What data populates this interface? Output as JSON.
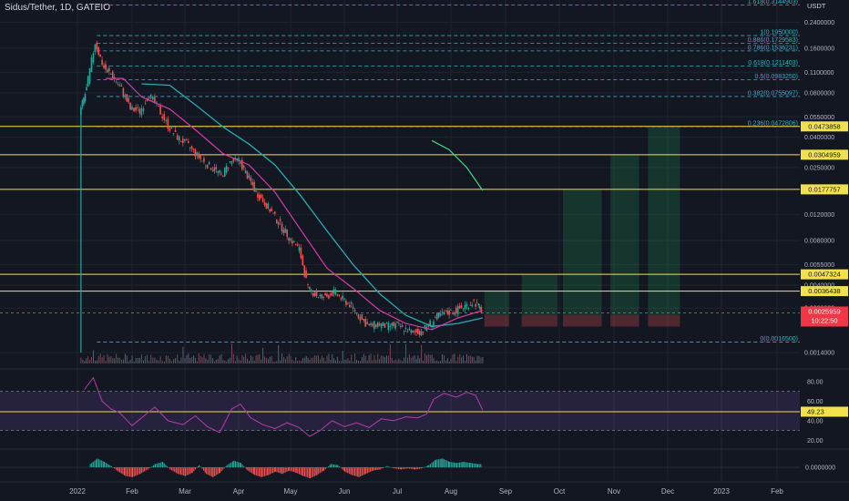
{
  "header": {
    "symbol_title": "Sidus/Tether, 1D, GATEIO",
    "currency": "USDT"
  },
  "colors": {
    "background": "#131722",
    "grid": "#1f2330",
    "fib": "#2fb3c4",
    "horizontal": "#f2e14d",
    "ma_fast": "#d63aa6",
    "ma_slow": "#2aaab0",
    "ma_extra": "#3ddc84",
    "candle_up": "#26a69a",
    "candle_down": "#ef5350",
    "rsi": "#b03fa7",
    "price_badge": "#f23645",
    "badge_text": "#131722"
  },
  "chart_data": [
    {
      "type": "line",
      "name": "price",
      "scale": "log",
      "ylim": [
        0.0011,
        0.33
      ],
      "x_axis": [
        "2022",
        "Feb",
        "Mar",
        "Apr",
        "May",
        "Jun",
        "Jul",
        "Aug",
        "Sep",
        "Oct",
        "Nov",
        "Dec",
        "2023",
        "Feb"
      ],
      "y_ticks": [
        "0.2400000",
        "0.1600000",
        "0.1100000",
        "0.0800000",
        "0.0550000",
        "0.0400000",
        "0.0250000",
        "0.0120000",
        "0.0080000",
        "0.0055000",
        "0.0040000",
        "0.0028000",
        "0.0014000"
      ],
      "fib_levels": [
        {
          "label": "1.618(0.3144903)",
          "value": 0.3144903
        },
        {
          "label": "1(0.1950000)",
          "value": 0.195
        },
        {
          "label": "0.886(0.1729583)",
          "value": 0.1729583
        },
        {
          "label": "0.786(0.1536231)",
          "value": 0.1536231
        },
        {
          "label": "0.618(0.1211403)",
          "value": 0.1211403
        },
        {
          "label": "0.5(0.0983250)",
          "value": 0.098325
        },
        {
          "label": "0.382(0.0755097)",
          "value": 0.0755097
        },
        {
          "label": "0.236(0.0472806)",
          "value": 0.0472806
        },
        {
          "label": "0(0.0016500)",
          "value": 0.00165
        }
      ],
      "horizontal_levels": [
        {
          "label": "0.0473858",
          "value": 0.0473858
        },
        {
          "label": "0.0304959",
          "value": 0.0304959
        },
        {
          "label": "0.0177757",
          "value": 0.0177757
        },
        {
          "label": "0.0047324",
          "value": 0.0047324
        },
        {
          "label": "0.0036438",
          "value": 0.0036438
        }
      ],
      "last_price": {
        "label": "0.0025959",
        "countdown": "10:22:50",
        "value": 0.0025959
      },
      "series_close": [
        {
          "date": "2022-01-03",
          "value": 0.058
        },
        {
          "date": "2022-01-07",
          "value": 0.085
        },
        {
          "date": "2022-01-12",
          "value": 0.175
        },
        {
          "date": "2022-01-17",
          "value": 0.118
        },
        {
          "date": "2022-01-22",
          "value": 0.104
        },
        {
          "date": "2022-01-27",
          "value": 0.085
        },
        {
          "date": "2022-02-01",
          "value": 0.062
        },
        {
          "date": "2022-02-06",
          "value": 0.06
        },
        {
          "date": "2022-02-11",
          "value": 0.078
        },
        {
          "date": "2022-02-16",
          "value": 0.062
        },
        {
          "date": "2022-02-21",
          "value": 0.048
        },
        {
          "date": "2022-02-26",
          "value": 0.04
        },
        {
          "date": "2022-03-03",
          "value": 0.036
        },
        {
          "date": "2022-03-08",
          "value": 0.031
        },
        {
          "date": "2022-03-13",
          "value": 0.027
        },
        {
          "date": "2022-03-18",
          "value": 0.025
        },
        {
          "date": "2022-03-23",
          "value": 0.022
        },
        {
          "date": "2022-03-28",
          "value": 0.027
        },
        {
          "date": "2022-04-02",
          "value": 0.028
        },
        {
          "date": "2022-04-07",
          "value": 0.022
        },
        {
          "date": "2022-04-12",
          "value": 0.017
        },
        {
          "date": "2022-04-17",
          "value": 0.0145
        },
        {
          "date": "2022-04-22",
          "value": 0.012
        },
        {
          "date": "2022-04-27",
          "value": 0.0098
        },
        {
          "date": "2022-05-02",
          "value": 0.0082
        },
        {
          "date": "2022-05-07",
          "value": 0.007
        },
        {
          "date": "2022-05-12",
          "value": 0.0038
        },
        {
          "date": "2022-05-17",
          "value": 0.0034
        },
        {
          "date": "2022-05-22",
          "value": 0.0033
        },
        {
          "date": "2022-05-27",
          "value": 0.0036
        },
        {
          "date": "2022-06-01",
          "value": 0.0032
        },
        {
          "date": "2022-06-06",
          "value": 0.0029
        },
        {
          "date": "2022-06-11",
          "value": 0.0024
        },
        {
          "date": "2022-06-16",
          "value": 0.0021
        },
        {
          "date": "2022-06-21",
          "value": 0.0022
        },
        {
          "date": "2022-06-26",
          "value": 0.0021
        },
        {
          "date": "2022-07-01",
          "value": 0.00215
        },
        {
          "date": "2022-07-06",
          "value": 0.00205
        },
        {
          "date": "2022-07-11",
          "value": 0.0019
        },
        {
          "date": "2022-07-16",
          "value": 0.00195
        },
        {
          "date": "2022-07-21",
          "value": 0.0022
        },
        {
          "date": "2022-07-26",
          "value": 0.0025
        },
        {
          "date": "2022-07-31",
          "value": 0.0026
        },
        {
          "date": "2022-08-05",
          "value": 0.0027
        },
        {
          "date": "2022-08-10",
          "value": 0.0029
        },
        {
          "date": "2022-08-15",
          "value": 0.0031
        },
        {
          "date": "2022-08-19",
          "value": 0.0027
        }
      ],
      "ma_fast": [
        {
          "date": "2022-01-17",
          "value": 0.1
        },
        {
          "date": "2022-01-27",
          "value": 0.1
        },
        {
          "date": "2022-02-06",
          "value": 0.075
        },
        {
          "date": "2022-02-21",
          "value": 0.062
        },
        {
          "date": "2022-03-08",
          "value": 0.044
        },
        {
          "date": "2022-03-23",
          "value": 0.031
        },
        {
          "date": "2022-04-07",
          "value": 0.026
        },
        {
          "date": "2022-04-22",
          "value": 0.017
        },
        {
          "date": "2022-05-07",
          "value": 0.0094
        },
        {
          "date": "2022-05-22",
          "value": 0.0052
        },
        {
          "date": "2022-06-06",
          "value": 0.0038
        },
        {
          "date": "2022-06-21",
          "value": 0.0027
        },
        {
          "date": "2022-07-06",
          "value": 0.0022
        },
        {
          "date": "2022-07-21",
          "value": 0.002
        },
        {
          "date": "2022-08-05",
          "value": 0.0024
        },
        {
          "date": "2022-08-19",
          "value": 0.0027
        }
      ],
      "ma_slow": [
        {
          "date": "2022-02-06",
          "value": 0.092
        },
        {
          "date": "2022-02-21",
          "value": 0.09
        },
        {
          "date": "2022-03-08",
          "value": 0.065
        },
        {
          "date": "2022-03-23",
          "value": 0.047
        },
        {
          "date": "2022-04-07",
          "value": 0.036
        },
        {
          "date": "2022-04-22",
          "value": 0.026
        },
        {
          "date": "2022-05-07",
          "value": 0.016
        },
        {
          "date": "2022-05-22",
          "value": 0.0093
        },
        {
          "date": "2022-06-06",
          "value": 0.0055
        },
        {
          "date": "2022-06-21",
          "value": 0.0035
        },
        {
          "date": "2022-07-06",
          "value": 0.0025
        },
        {
          "date": "2022-07-21",
          "value": 0.0021
        },
        {
          "date": "2022-08-05",
          "value": 0.0022
        },
        {
          "date": "2022-08-19",
          "value": 0.0024
        }
      ],
      "ma_extra": [
        {
          "date": "2022-07-21",
          "value": 0.038
        },
        {
          "date": "2022-07-31",
          "value": 0.033
        },
        {
          "date": "2022-08-10",
          "value": 0.025
        },
        {
          "date": "2022-08-19",
          "value": 0.0175
        }
      ],
      "projection_boxes": [
        {
          "start": "2022-08-20",
          "end": "2022-09-03",
          "entry": 0.0025,
          "stop": 0.0021,
          "target": 0.0036438
        },
        {
          "start": "2022-09-10",
          "end": "2022-09-30",
          "entry": 0.0025,
          "stop": 0.0021,
          "target": 0.0047324
        },
        {
          "start": "2022-10-03",
          "end": "2022-10-25",
          "entry": 0.0025,
          "stop": 0.0021,
          "target": 0.0177757
        },
        {
          "start": "2022-10-30",
          "end": "2022-11-15",
          "entry": 0.0025,
          "stop": 0.0021,
          "target": 0.0304959
        },
        {
          "start": "2022-11-20",
          "end": "2022-12-08",
          "entry": 0.0025,
          "stop": 0.0021,
          "target": 0.0473858
        }
      ]
    },
    {
      "type": "line",
      "name": "RSI",
      "ylim": [
        12,
        92
      ],
      "y_ticks": [
        "80.00",
        "60.00",
        "40.00",
        "20.00"
      ],
      "bands": [
        30,
        70
      ],
      "level_line": 49.23,
      "current_label": "49.23",
      "series": [
        {
          "date": "2022-01-05",
          "value": 72
        },
        {
          "date": "2022-01-10",
          "value": 84
        },
        {
          "date": "2022-01-15",
          "value": 60
        },
        {
          "date": "2022-01-20",
          "value": 52
        },
        {
          "date": "2022-01-25",
          "value": 48
        },
        {
          "date": "2022-02-01",
          "value": 35
        },
        {
          "date": "2022-02-08",
          "value": 46
        },
        {
          "date": "2022-02-13",
          "value": 54
        },
        {
          "date": "2022-02-20",
          "value": 40
        },
        {
          "date": "2022-02-28",
          "value": 36
        },
        {
          "date": "2022-03-07",
          "value": 45
        },
        {
          "date": "2022-03-14",
          "value": 34
        },
        {
          "date": "2022-03-21",
          "value": 28
        },
        {
          "date": "2022-03-28",
          "value": 52
        },
        {
          "date": "2022-04-02",
          "value": 57
        },
        {
          "date": "2022-04-08",
          "value": 43
        },
        {
          "date": "2022-04-15",
          "value": 36
        },
        {
          "date": "2022-04-22",
          "value": 32
        },
        {
          "date": "2022-04-29",
          "value": 38
        },
        {
          "date": "2022-05-06",
          "value": 33
        },
        {
          "date": "2022-05-12",
          "value": 24
        },
        {
          "date": "2022-05-18",
          "value": 30
        },
        {
          "date": "2022-05-25",
          "value": 40
        },
        {
          "date": "2022-06-01",
          "value": 34
        },
        {
          "date": "2022-06-08",
          "value": 38
        },
        {
          "date": "2022-06-15",
          "value": 33
        },
        {
          "date": "2022-06-22",
          "value": 42
        },
        {
          "date": "2022-06-29",
          "value": 40
        },
        {
          "date": "2022-07-06",
          "value": 44
        },
        {
          "date": "2022-07-13",
          "value": 43
        },
        {
          "date": "2022-07-18",
          "value": 47
        },
        {
          "date": "2022-07-22",
          "value": 62
        },
        {
          "date": "2022-07-28",
          "value": 68
        },
        {
          "date": "2022-08-04",
          "value": 64
        },
        {
          "date": "2022-08-10",
          "value": 69
        },
        {
          "date": "2022-08-15",
          "value": 66
        },
        {
          "date": "2022-08-19",
          "value": 51
        }
      ]
    },
    {
      "type": "bar",
      "name": "histogram",
      "y_ticks": [
        "0.0000000"
      ],
      "ylim": [
        -1,
        1
      ],
      "series": [
        {
          "date": "2022-01-08",
          "value": 0.3
        },
        {
          "date": "2022-01-12",
          "value": 0.8
        },
        {
          "date": "2022-01-16",
          "value": 0.5
        },
        {
          "date": "2022-01-20",
          "value": 0.1
        },
        {
          "date": "2022-01-24",
          "value": -0.4
        },
        {
          "date": "2022-01-28",
          "value": -0.8
        },
        {
          "date": "2022-02-01",
          "value": -0.9
        },
        {
          "date": "2022-02-05",
          "value": -0.6
        },
        {
          "date": "2022-02-09",
          "value": -0.2
        },
        {
          "date": "2022-02-13",
          "value": 0.3
        },
        {
          "date": "2022-02-17",
          "value": 0.5
        },
        {
          "date": "2022-02-21",
          "value": -0.2
        },
        {
          "date": "2022-02-25",
          "value": -0.6
        },
        {
          "date": "2022-03-01",
          "value": -0.8
        },
        {
          "date": "2022-03-05",
          "value": -0.5
        },
        {
          "date": "2022-03-09",
          "value": 0.2
        },
        {
          "date": "2022-03-13",
          "value": -0.6
        },
        {
          "date": "2022-03-17",
          "value": -0.9
        },
        {
          "date": "2022-03-21",
          "value": -0.5
        },
        {
          "date": "2022-03-25",
          "value": 0.2
        },
        {
          "date": "2022-03-29",
          "value": 0.6
        },
        {
          "date": "2022-04-02",
          "value": 0.4
        },
        {
          "date": "2022-04-06",
          "value": -0.3
        },
        {
          "date": "2022-04-10",
          "value": -0.7
        },
        {
          "date": "2022-04-14",
          "value": -0.9
        },
        {
          "date": "2022-04-18",
          "value": -0.7
        },
        {
          "date": "2022-04-22",
          "value": -0.4
        },
        {
          "date": "2022-04-26",
          "value": -0.6
        },
        {
          "date": "2022-04-30",
          "value": -0.3
        },
        {
          "date": "2022-05-04",
          "value": -0.5
        },
        {
          "date": "2022-05-08",
          "value": -0.8
        },
        {
          "date": "2022-05-12",
          "value": -1.0
        },
        {
          "date": "2022-05-16",
          "value": -0.7
        },
        {
          "date": "2022-05-20",
          "value": -0.3
        },
        {
          "date": "2022-05-24",
          "value": 0.3
        },
        {
          "date": "2022-05-28",
          "value": 0.2
        },
        {
          "date": "2022-06-01",
          "value": -0.4
        },
        {
          "date": "2022-06-05",
          "value": -0.7
        },
        {
          "date": "2022-06-09",
          "value": -0.9
        },
        {
          "date": "2022-06-13",
          "value": -0.6
        },
        {
          "date": "2022-06-17",
          "value": -0.3
        },
        {
          "date": "2022-06-21",
          "value": -0.2
        },
        {
          "date": "2022-06-25",
          "value": 0.1
        },
        {
          "date": "2022-06-29",
          "value": -0.1
        },
        {
          "date": "2022-07-03",
          "value": -0.2
        },
        {
          "date": "2022-07-07",
          "value": -0.1
        },
        {
          "date": "2022-07-11",
          "value": -0.2
        },
        {
          "date": "2022-07-15",
          "value": -0.1
        },
        {
          "date": "2022-07-19",
          "value": 0.2
        },
        {
          "date": "2022-07-23",
          "value": 0.7
        },
        {
          "date": "2022-07-27",
          "value": 0.8
        },
        {
          "date": "2022-07-31",
          "value": 0.5
        },
        {
          "date": "2022-08-04",
          "value": 0.4
        },
        {
          "date": "2022-08-08",
          "value": 0.5
        },
        {
          "date": "2022-08-12",
          "value": 0.4
        },
        {
          "date": "2022-08-16",
          "value": 0.3
        }
      ]
    }
  ]
}
